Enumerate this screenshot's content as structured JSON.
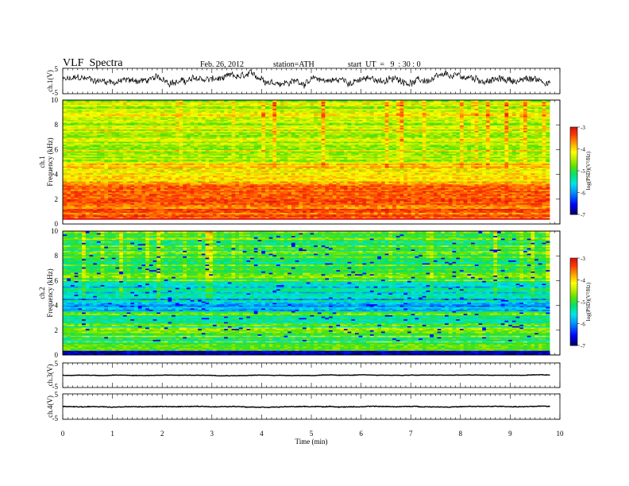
{
  "header": {
    "title": "VLF  Spectra",
    "date": "Feb. 26, 2012",
    "station": "station=ATH",
    "start_ut": "start  UT  =   9  : 30 : 0"
  },
  "chart_data": [
    {
      "type": "line",
      "panel": "ch1",
      "ylabel": "ch.1(V)",
      "ylim": [
        -5,
        5
      ],
      "yticks": [
        "5",
        "-5"
      ],
      "x_range_min": [
        0,
        9.8
      ],
      "series": [
        {
          "values_sample_mean": 0.3,
          "noise_amplitude": 2.5
        }
      ]
    },
    {
      "type": "heatmap",
      "panel": "ch1-spectrogram",
      "ylabel": "ch.1\nFrequency  (kHz)",
      "ylim": [
        0,
        10
      ],
      "yticks": [
        "0",
        "2",
        "4",
        "6",
        "8",
        "10"
      ],
      "colorbar": {
        "label": "log(PSD)(V²/Hz)",
        "ticks": [
          "-3",
          "-4",
          "-5",
          "-6",
          "-7"
        ],
        "range": [
          -7,
          -3
        ]
      },
      "palette": [
        "#00007a",
        "#0000ff",
        "#00aaff",
        "#00e8e8",
        "#00e080",
        "#60e000",
        "#c0f000",
        "#ffff00",
        "#ffb000",
        "#ff5000",
        "#e01818",
        "#ffffff"
      ]
    },
    {
      "type": "heatmap",
      "panel": "ch2-spectrogram",
      "ylabel": "ch.2\nFrequency  (kHz)",
      "ylim": [
        0,
        10
      ],
      "yticks": [
        "0",
        "2",
        "4",
        "6",
        "8",
        "10"
      ],
      "colorbar": {
        "label": "log(PSD)(V²/Hz)",
        "ticks": [
          "-3",
          "-4",
          "-5",
          "-6",
          "-7"
        ],
        "range": [
          -7,
          -3
        ]
      }
    },
    {
      "type": "line",
      "panel": "ch3",
      "ylabel": "ch.3(V)",
      "ylim": [
        -5,
        5
      ],
      "yticks": [
        "5",
        "-5"
      ],
      "series": [
        {
          "values_sample_mean": 0.0,
          "noise_amplitude": 0.2
        }
      ]
    },
    {
      "type": "line",
      "panel": "ch4",
      "ylabel": "ch.4(V)",
      "ylim": [
        -5,
        5
      ],
      "yticks": [
        "5",
        "-5"
      ],
      "series": [
        {
          "values_sample_mean": 0.0,
          "noise_amplitude": 0.25
        }
      ]
    }
  ],
  "x_axis": {
    "label": "Time  (min)",
    "ticks": [
      "0",
      "1",
      "2",
      "3",
      "4",
      "5",
      "6",
      "7",
      "8",
      "9",
      "10"
    ],
    "range": [
      0,
      10
    ]
  }
}
